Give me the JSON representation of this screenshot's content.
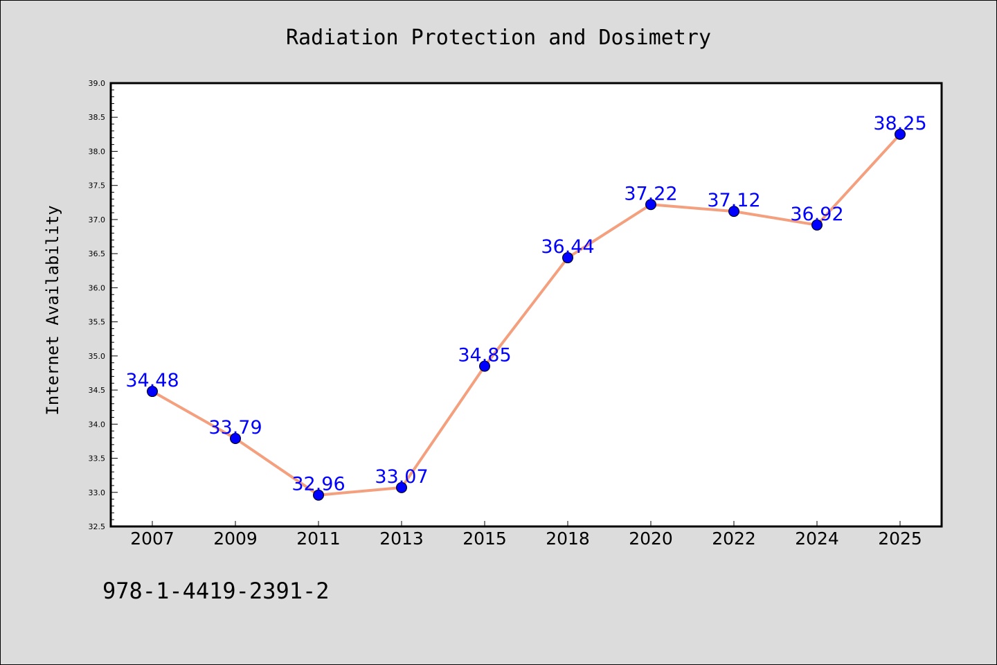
{
  "colors": {
    "background": "#dcdcdc",
    "plot_background": "#ffffff",
    "line": "#f4a07e",
    "marker": "#0000ff",
    "data_label": "#0000ff"
  },
  "footer": {
    "isbn": "978-1-4419-2391-2"
  },
  "chart_data": {
    "type": "line",
    "title": "Radiation Protection and Dosimetry",
    "xlabel": "",
    "ylabel": "Internet Availability",
    "categories": [
      "2007",
      "2009",
      "2011",
      "2013",
      "2015",
      "2018",
      "2020",
      "2022",
      "2024",
      "2025"
    ],
    "values": [
      34.48,
      33.79,
      32.96,
      33.07,
      34.85,
      36.44,
      37.22,
      37.12,
      36.92,
      38.25
    ],
    "data_labels": [
      "34.48",
      "33.79",
      "32.96",
      "33.07",
      "34.85",
      "36.44",
      "37.22",
      "37.12",
      "36.92",
      "38.25"
    ],
    "ylim": [
      32.5,
      39.0
    ],
    "yticks": [
      "32.5",
      "33.0",
      "33.5",
      "34.0",
      "34.5",
      "35.0",
      "35.5",
      "36.0",
      "36.5",
      "37.0",
      "37.5",
      "38.0",
      "38.5",
      "39.0"
    ],
    "grid": false,
    "legend": "none"
  }
}
